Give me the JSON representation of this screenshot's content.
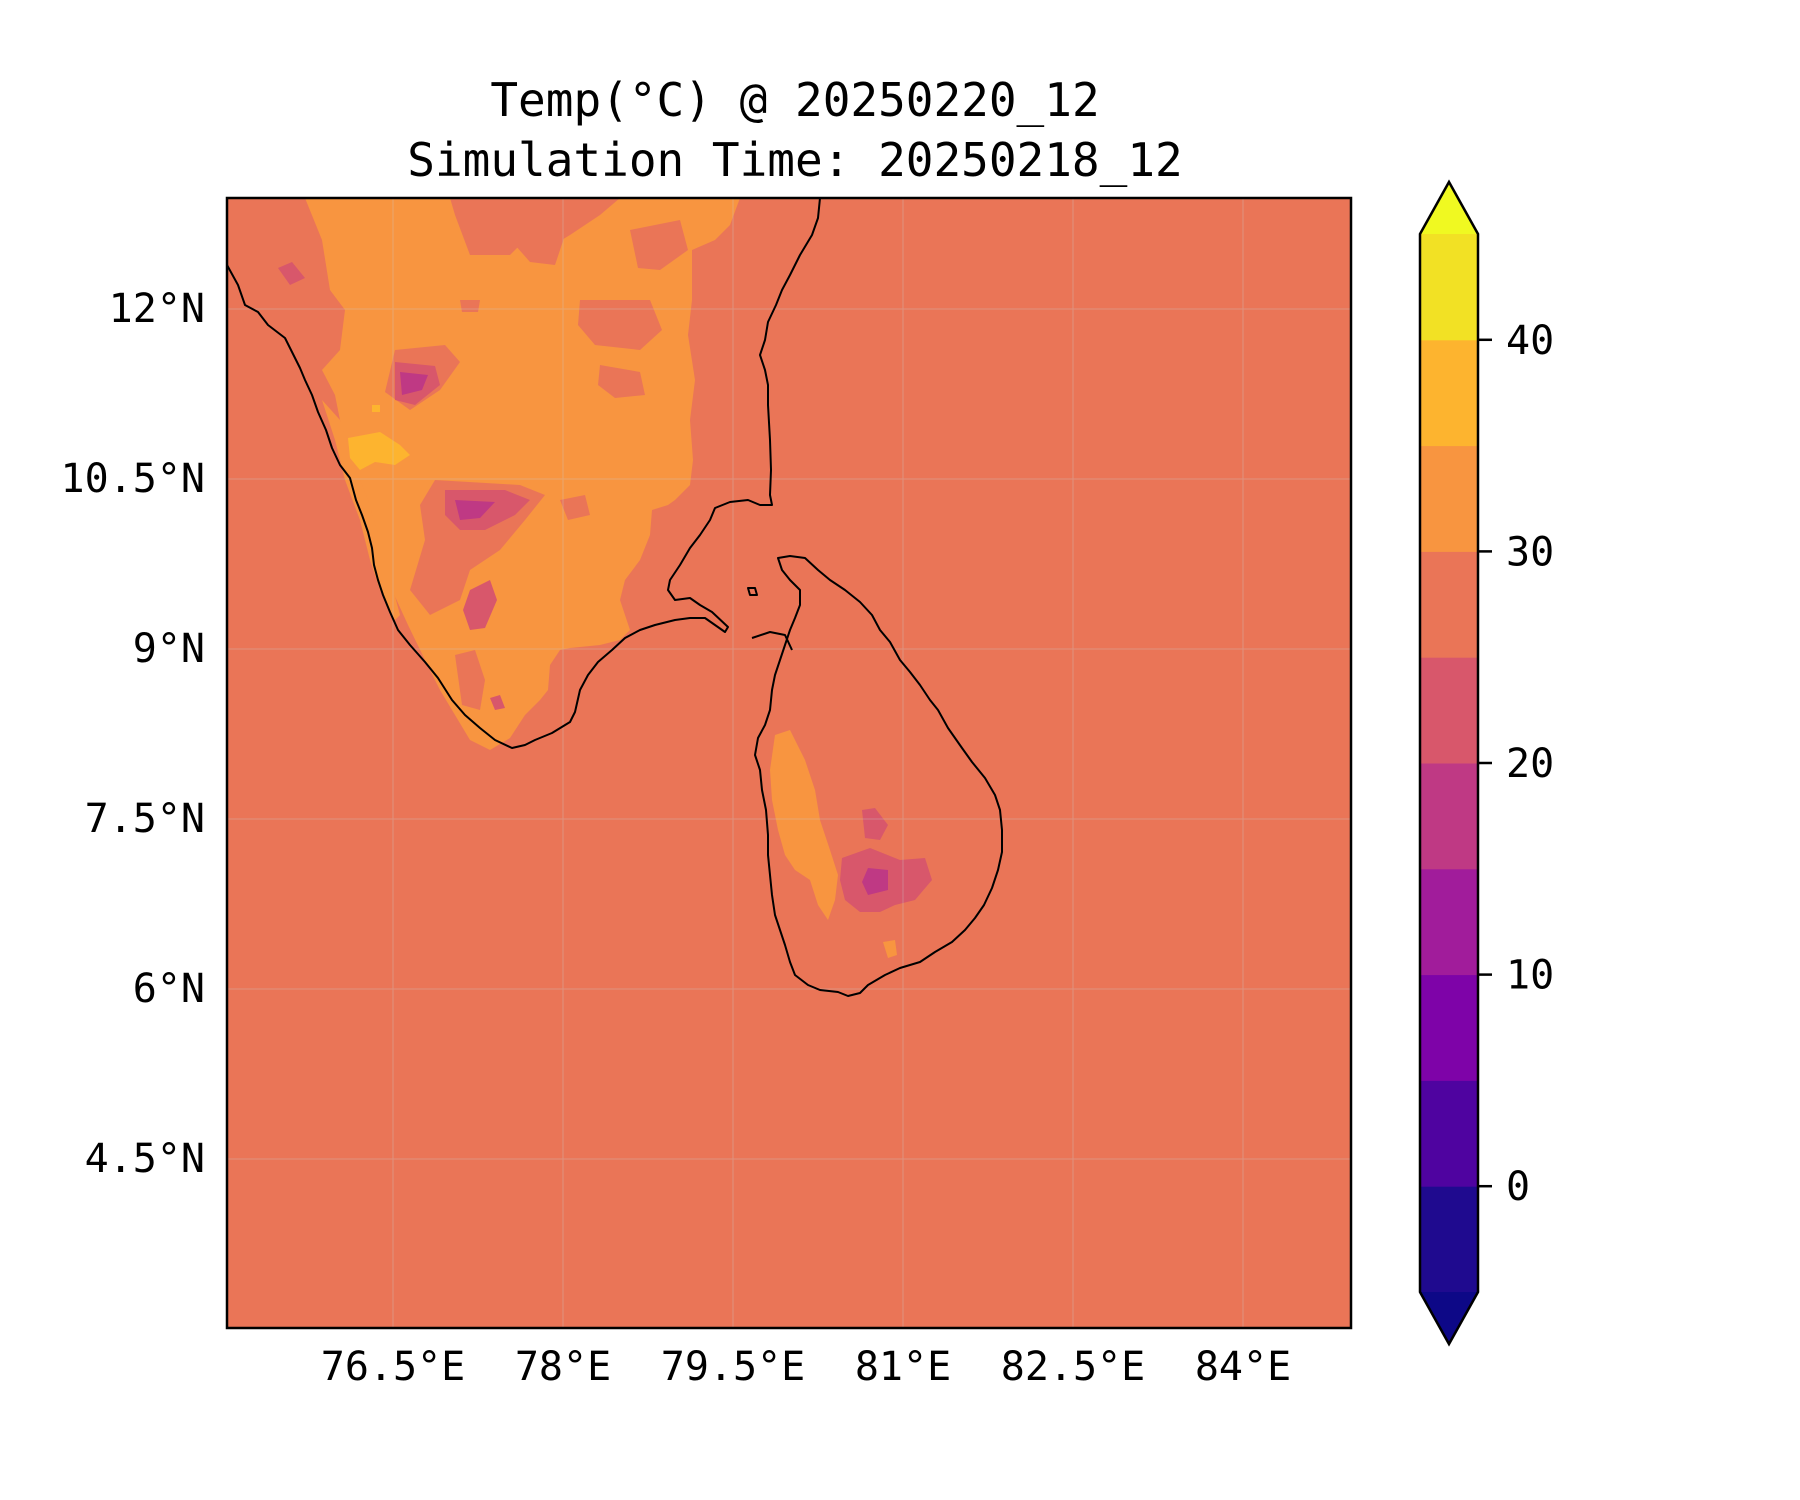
{
  "title": "Temp(°C) @ 20250220_12",
  "subtitle": "Simulation Time: 20250218_12",
  "map": {
    "region": "Southern India and Sri Lanka",
    "lon_range": [
      75.0,
      84.9
    ],
    "lat_range": [
      3.0,
      12.95
    ],
    "x_ticks": [
      "76.5°E",
      "78°E",
      "79.5°E",
      "81°E",
      "82.5°E",
      "84°E"
    ],
    "x_tick_values": [
      76.5,
      78,
      79.5,
      81,
      82.5,
      84
    ],
    "y_ticks": [
      "12°N",
      "10.5°N",
      "9°N",
      "7.5°N",
      "6°N",
      "4.5°N"
    ],
    "y_tick_values": [
      12,
      10.5,
      9,
      7.5,
      6,
      4.5
    ],
    "background_color": "#ea7557"
  },
  "colorbar": {
    "ticks": [
      "40",
      "30",
      "20",
      "10",
      "0"
    ],
    "tick_values": [
      40,
      30,
      20,
      10,
      0
    ],
    "range": [
      -5,
      45
    ],
    "extend": "both",
    "bands": [
      {
        "from": -5,
        "to": 0,
        "color": "#1f0a8f"
      },
      {
        "from": 0,
        "to": 5,
        "color": "#4f03a0"
      },
      {
        "from": 5,
        "to": 10,
        "color": "#7e03a8"
      },
      {
        "from": 10,
        "to": 15,
        "color": "#a11c9b"
      },
      {
        "from": 15,
        "to": 20,
        "color": "#bf3984"
      },
      {
        "from": 20,
        "to": 25,
        "color": "#d8576b"
      },
      {
        "from": 25,
        "to": 30,
        "color": "#ea7557"
      },
      {
        "from": 30,
        "to": 35,
        "color": "#f89540"
      },
      {
        "from": 35,
        "to": 40,
        "color": "#fdb42f"
      },
      {
        "from": 40,
        "to": 45,
        "color": "#f2e124"
      }
    ],
    "under_color": "#0d0887",
    "over_color": "#f0f921"
  }
}
